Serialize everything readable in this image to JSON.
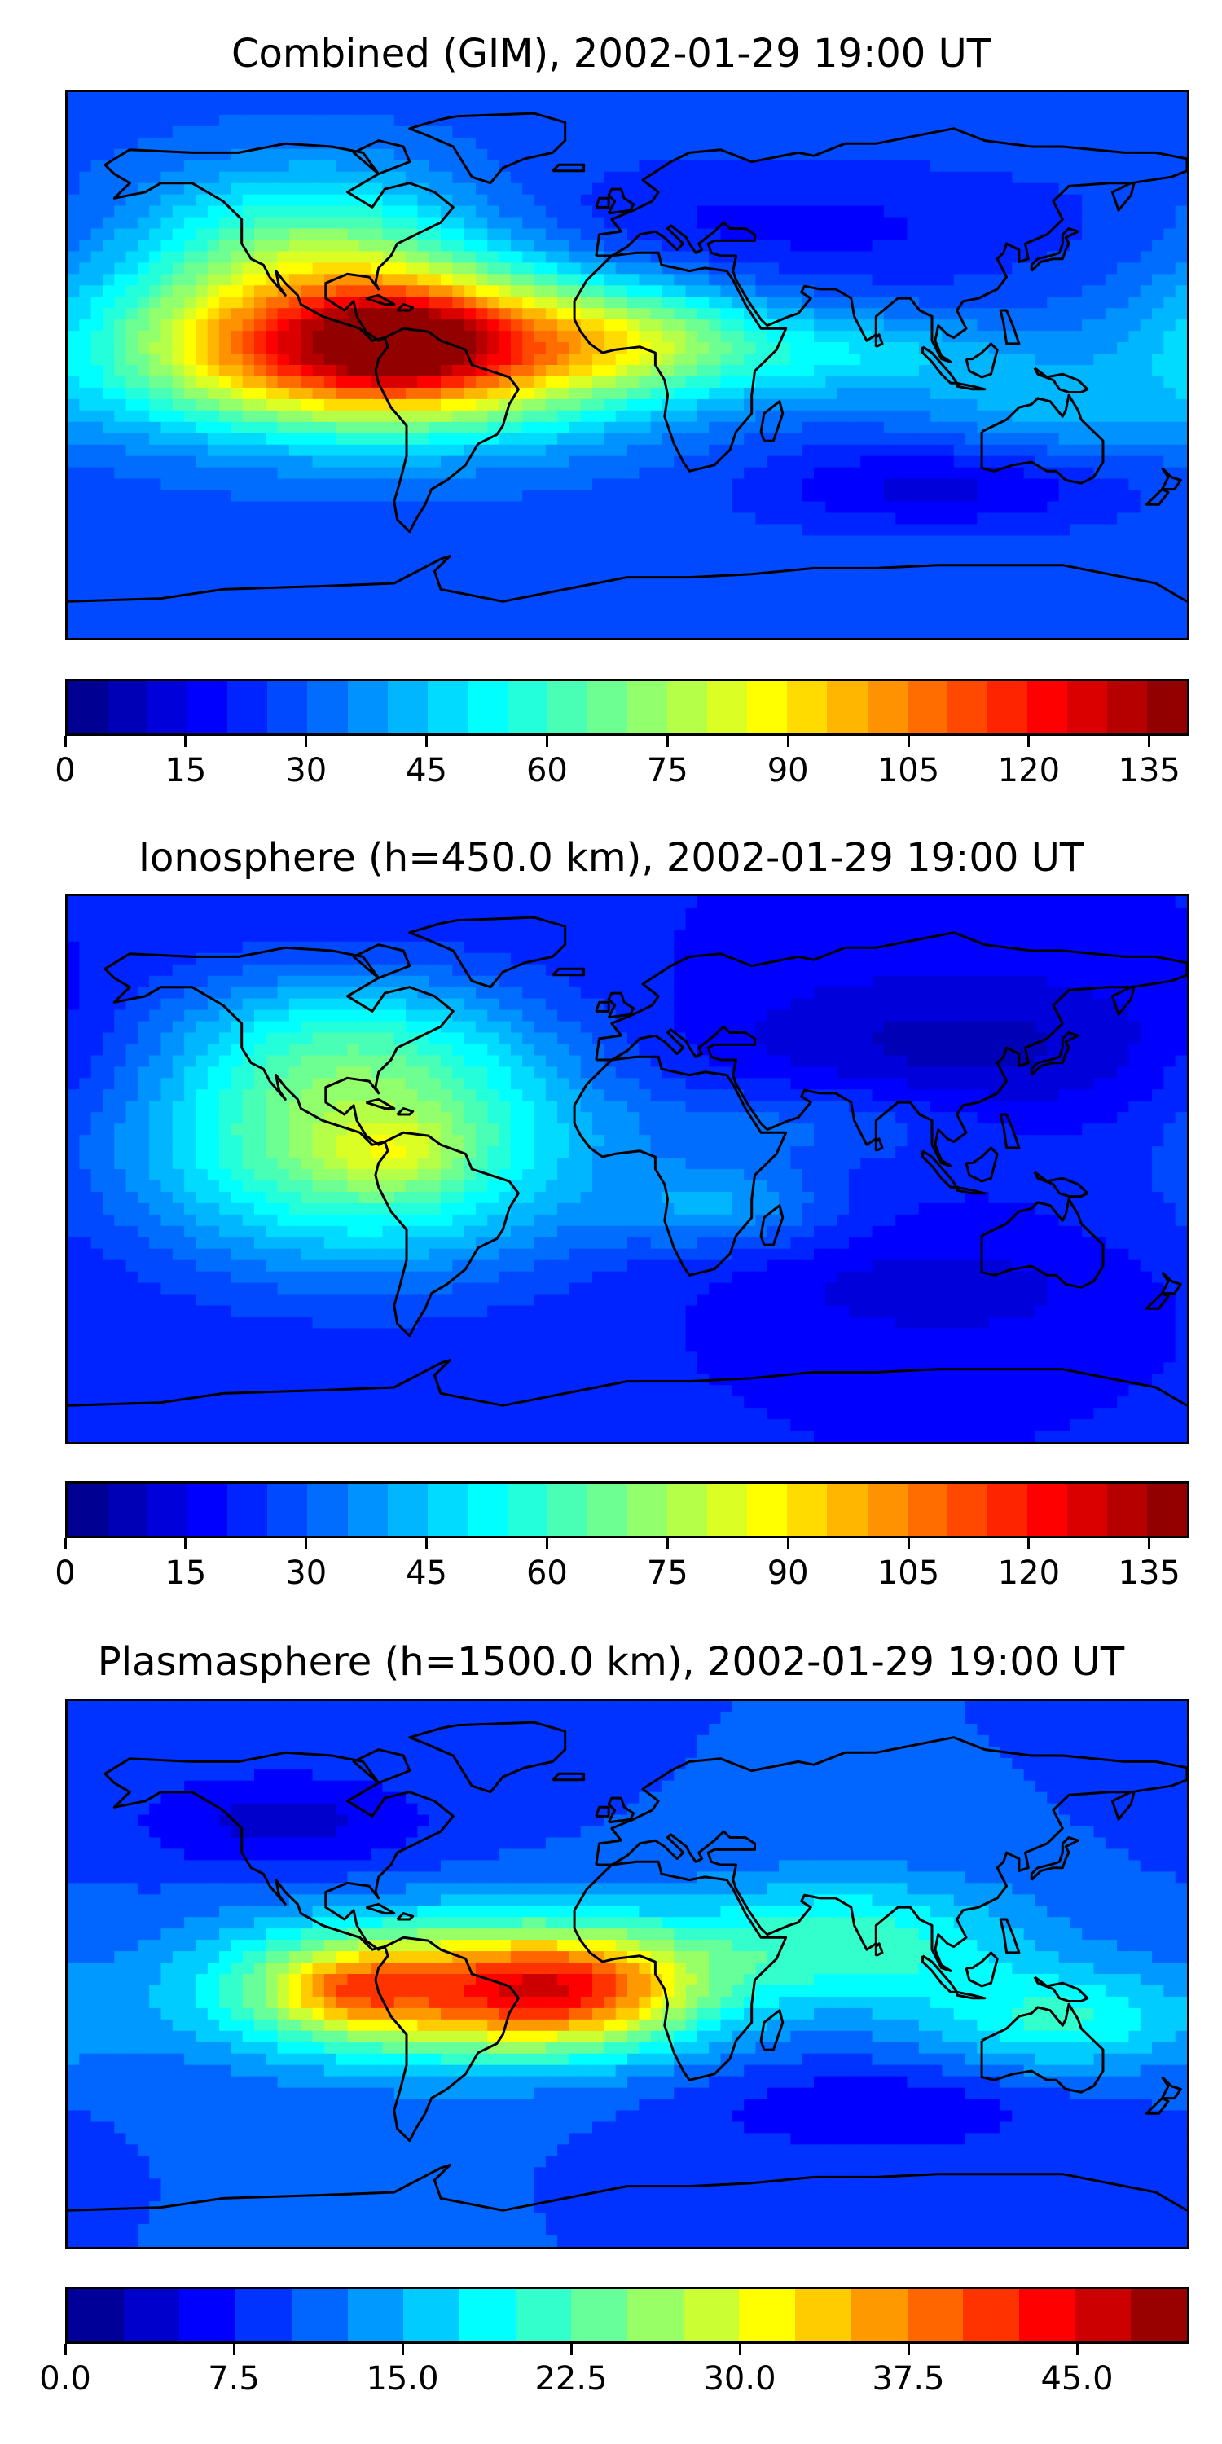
{
  "panels": [
    {
      "title": "Combined (GIM), 2002-01-29 19:00 UT",
      "colorbar": {
        "vmin": 0,
        "vmax": 140,
        "levels": 28,
        "ticks": [
          "0",
          "15",
          "30",
          "45",
          "60",
          "75",
          "90",
          "105",
          "120",
          "135"
        ],
        "tick_values": [
          0,
          15,
          30,
          45,
          60,
          75,
          90,
          105,
          120,
          135
        ]
      },
      "field": {
        "background": 28,
        "blobs": [
          {
            "lon": -80,
            "lat": 5,
            "value": 105,
            "sx": 55,
            "sy": 18
          },
          {
            "lon": -70,
            "lat": 8,
            "value": 25,
            "sx": 18,
            "sy": 10
          },
          {
            "lon": -100,
            "lat": 40,
            "value": 35,
            "sx": 40,
            "sy": 18
          },
          {
            "lon": 5,
            "lat": 8,
            "value": 25,
            "sx": 30,
            "sy": 12
          },
          {
            "lon": 75,
            "lat": 3,
            "value": 18,
            "sx": 35,
            "sy": 10
          },
          {
            "lon": 135,
            "lat": -15,
            "value": 12,
            "sx": 30,
            "sy": 12
          },
          {
            "lon": 40,
            "lat": 45,
            "value": -10,
            "sx": 80,
            "sy": 15
          },
          {
            "lon": 100,
            "lat": -40,
            "value": -15,
            "sx": 40,
            "sy": 10
          }
        ]
      }
    },
    {
      "title": "Ionosphere  (h=450.0 km), 2002-01-29 19:00 UT",
      "colorbar": {
        "vmin": 0,
        "vmax": 140,
        "levels": 28,
        "ticks": [
          "0",
          "15",
          "30",
          "45",
          "60",
          "75",
          "90",
          "105",
          "120",
          "135"
        ],
        "tick_values": [
          0,
          15,
          30,
          45,
          60,
          75,
          90,
          105,
          120,
          135
        ]
      },
      "field": {
        "background": 20,
        "blobs": [
          {
            "lon": -85,
            "lat": 10,
            "value": 55,
            "sx": 50,
            "sy": 28
          },
          {
            "lon": -75,
            "lat": 5,
            "value": 12,
            "sx": 15,
            "sy": 8
          },
          {
            "lon": -95,
            "lat": 45,
            "value": 15,
            "sx": 40,
            "sy": 15
          },
          {
            "lon": 30,
            "lat": -12,
            "value": 18,
            "sx": 25,
            "sy": 10
          },
          {
            "lon": 60,
            "lat": 15,
            "value": 12,
            "sx": 40,
            "sy": 10
          },
          {
            "lon": 110,
            "lat": 40,
            "value": -12,
            "sx": 60,
            "sy": 18
          },
          {
            "lon": 100,
            "lat": -40,
            "value": -8,
            "sx": 40,
            "sy": 12
          }
        ]
      }
    },
    {
      "title": "Plasmasphere (h=1500.0 km), 2002-01-29 19:00 UT",
      "colorbar": {
        "vmin": 0,
        "vmax": 50,
        "levels": 20,
        "ticks": [
          "0.0",
          "7.5",
          "15.0",
          "22.5",
          "30.0",
          "37.5",
          "45.0"
        ],
        "tick_values": [
          0,
          7.5,
          15,
          22.5,
          30,
          37.5,
          45
        ]
      },
      "field": {
        "background": 10,
        "blobs": [
          {
            "lon": -70,
            "lat": -5,
            "value": 24,
            "sx": 45,
            "sy": 16
          },
          {
            "lon": -15,
            "lat": -5,
            "value": 22,
            "sx": 30,
            "sy": 14
          },
          {
            "lon": -90,
            "lat": -5,
            "value": 8,
            "sx": 15,
            "sy": 8
          },
          {
            "lon": 70,
            "lat": 10,
            "value": 12,
            "sx": 40,
            "sy": 15
          },
          {
            "lon": 140,
            "lat": -15,
            "value": 10,
            "sx": 30,
            "sy": 12
          },
          {
            "lon": -110,
            "lat": 50,
            "value": -6,
            "sx": 35,
            "sy": 12
          },
          {
            "lon": 80,
            "lat": -45,
            "value": -5,
            "sx": 40,
            "sy": 10
          }
        ]
      }
    }
  ],
  "colormap": "jet"
}
